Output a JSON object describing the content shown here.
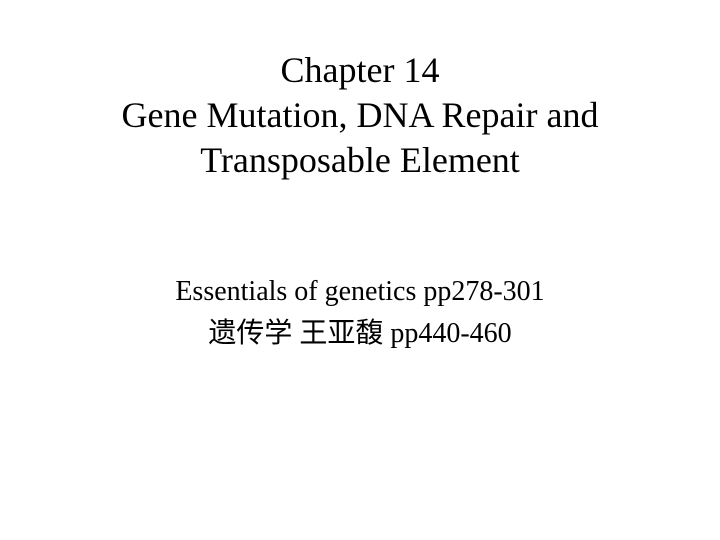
{
  "slide": {
    "background_color": "#ffffff",
    "text_color": "#000000",
    "font_family": "Times New Roman",
    "title": {
      "line1": "Chapter 14",
      "line2": "Gene Mutation, DNA Repair and",
      "line3": "Transposable Element",
      "font_size_pt": 36,
      "font_weight": 400
    },
    "subtitle": {
      "line1": "Essentials  of  genetics pp278-301",
      "line2": "遗传学  王亚馥 pp440-460",
      "font_size_pt": 28,
      "font_weight": 400
    }
  }
}
